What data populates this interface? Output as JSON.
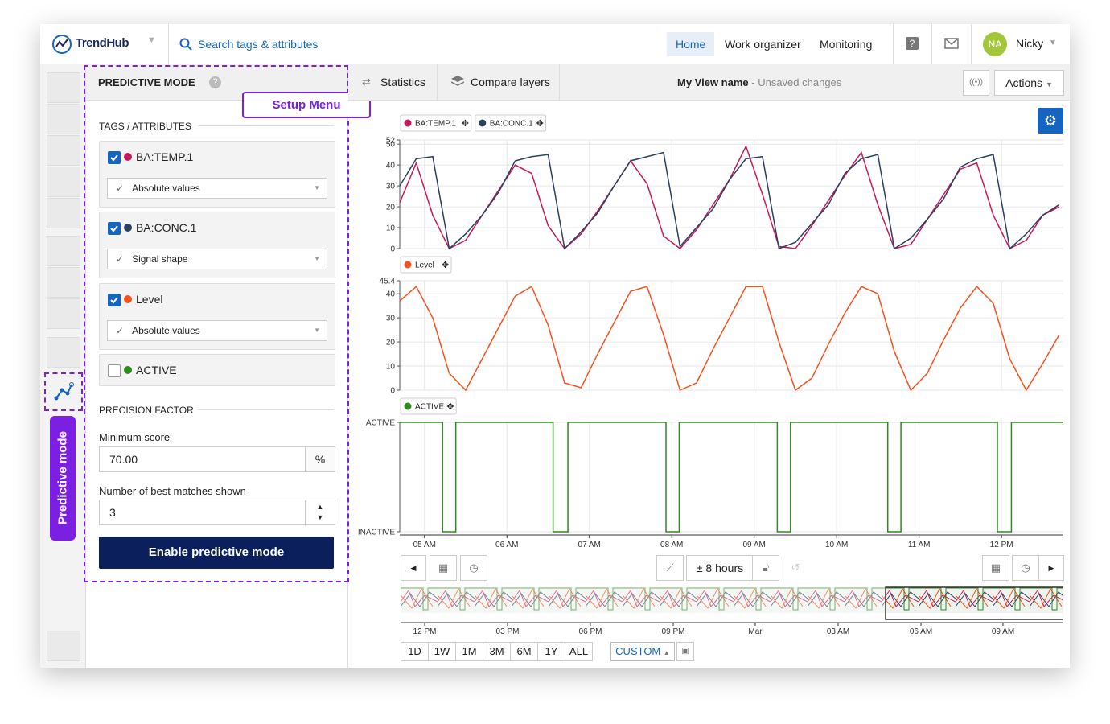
{
  "header": {
    "logo": "TrendHub",
    "search": "Search tags & attributes",
    "nav": [
      "Home",
      "Work organizer",
      "Monitoring"
    ],
    "avatar": "NA",
    "user": "Nicky"
  },
  "rail": {
    "mode_tab": "Predictive mode"
  },
  "setup": {
    "title": "PREDICTIVE MODE",
    "callout": "Setup Menu",
    "tags_heading": "TAGS / ATTRIBUTES",
    "tags": [
      {
        "name": "BA:TEMP.1",
        "color": "#c8185c",
        "checked": true,
        "mode": "Absolute values"
      },
      {
        "name": "BA:CONC.1",
        "color": "#2b3f5e",
        "checked": true,
        "mode": "Signal shape"
      },
      {
        "name": "Level",
        "color": "#f4511e",
        "checked": true,
        "mode": "Absolute values"
      },
      {
        "name": "ACTIVE",
        "color": "#2e8b1e",
        "checked": false
      }
    ],
    "precision_heading": "PRECISION FACTOR",
    "min_score_label": "Minimum score",
    "min_score": "70.00",
    "min_score_unit": "%",
    "matches_label": "Number of best matches shown",
    "matches": 3,
    "button": "Enable predictive mode"
  },
  "toolbar": {
    "statistics": "Statistics",
    "compare": "Compare layers",
    "view_name": "My View name",
    "view_status": "- Unsaved changes",
    "actions": "Actions"
  },
  "charts": [
    {
      "type": "line",
      "xlim": [
        4.7,
        12.75
      ],
      "ylim": [
        0,
        52
      ],
      "yticks": [
        0,
        10,
        20,
        30,
        40,
        50,
        52
      ],
      "grid": true,
      "x": [
        4.7,
        4.9,
        5.1,
        5.3,
        5.5,
        5.7,
        5.9,
        6.1,
        6.3,
        6.5,
        6.7,
        6.9,
        7.1,
        7.3,
        7.5,
        7.7,
        7.9,
        8.1,
        8.3,
        8.5,
        8.7,
        8.9,
        9.1,
        9.3,
        9.5,
        9.7,
        9.9,
        10.1,
        10.3,
        10.5,
        10.7,
        10.9,
        11.1,
        11.3,
        11.5,
        11.7,
        11.9,
        12.1,
        12.3,
        12.5,
        12.7
      ],
      "series": [
        {
          "name": "BA:TEMP.1",
          "color": "#c8185c",
          "values": [
            22,
            41,
            16,
            0,
            4,
            16,
            28,
            40,
            36,
            11,
            0,
            7,
            18,
            30,
            42,
            31,
            6,
            0,
            9,
            21,
            33,
            49,
            26,
            1,
            0,
            11,
            23,
            35,
            46,
            21,
            0,
            2,
            14,
            26,
            38,
            41,
            16,
            0,
            4,
            16,
            20
          ]
        },
        {
          "name": "BA:CONC.1",
          "color": "#2b3f5e",
          "values": [
            30,
            43,
            44,
            0,
            7,
            16,
            27,
            42,
            44,
            45,
            0,
            8,
            17,
            30,
            42,
            44,
            46,
            1,
            10,
            19,
            33,
            43,
            44,
            0,
            3,
            12,
            21,
            36,
            43,
            45,
            0,
            5,
            14,
            24,
            39,
            43,
            45,
            0,
            7,
            16,
            21
          ]
        }
      ]
    },
    {
      "type": "line",
      "xlim": [
        4.7,
        12.75
      ],
      "ylim": [
        0,
        45.4
      ],
      "yticks": [
        0,
        10,
        20,
        30,
        40,
        45.4
      ],
      "grid": true,
      "x": [
        4.7,
        4.9,
        5.1,
        5.3,
        5.5,
        5.7,
        5.9,
        6.1,
        6.3,
        6.5,
        6.7,
        6.9,
        7.1,
        7.3,
        7.5,
        7.7,
        7.9,
        8.1,
        8.3,
        8.5,
        8.7,
        8.9,
        9.1,
        9.3,
        9.5,
        9.7,
        9.9,
        10.1,
        10.3,
        10.5,
        10.7,
        10.9,
        11.1,
        11.3,
        11.5,
        11.7,
        11.9,
        12.1,
        12.3,
        12.5,
        12.7
      ],
      "series": [
        {
          "name": "Level",
          "color": "#f4511e",
          "values": [
            37,
            43,
            30,
            7,
            0,
            13,
            26,
            39,
            43,
            27,
            3,
            1,
            15,
            28,
            41,
            43,
            23,
            0,
            3,
            17,
            30,
            43,
            43,
            20,
            0,
            5,
            19,
            32,
            43,
            40,
            16,
            0,
            7,
            21,
            34,
            43,
            36,
            13,
            0,
            11,
            23
          ]
        }
      ]
    },
    {
      "type": "step",
      "xlim": [
        4.7,
        12.75
      ],
      "ylim": [
        0,
        1
      ],
      "yticks": [
        {
          "value": 0,
          "label": "INACTIVE"
        },
        {
          "value": 1,
          "label": "ACTIVE"
        }
      ],
      "grid": true,
      "xticks": [
        {
          "value": 5,
          "label": "05 AM"
        },
        {
          "value": 6,
          "label": "06 AM"
        },
        {
          "value": 7,
          "label": "07 AM"
        },
        {
          "value": 8,
          "label": "08 AM"
        },
        {
          "value": 9,
          "label": "09 AM"
        },
        {
          "value": 10,
          "label": "10 AM"
        },
        {
          "value": 11,
          "label": "11 AM"
        },
        {
          "value": 12,
          "label": "12 PM"
        }
      ],
      "x": [
        4.7,
        5.22,
        5.38,
        6.56,
        6.74,
        7.93,
        8.09,
        9.28,
        9.44,
        10.62,
        10.78,
        11.95,
        12.12,
        12.75
      ],
      "series": [
        {
          "name": "ACTIVE",
          "color": "#2e8b1e",
          "values": [
            1,
            0,
            1,
            0,
            1,
            0,
            1,
            0,
            1,
            0,
            1,
            0,
            1,
            1
          ]
        }
      ]
    }
  ],
  "time_controls": {
    "window": "± 8 hours",
    "ranges": [
      "1D",
      "1W",
      "1M",
      "3M",
      "6M",
      "1Y",
      "ALL"
    ],
    "custom": "CUSTOM",
    "overview_ticks": [
      "12 PM",
      "03 PM",
      "06 PM",
      "09 PM",
      "Mar",
      "03 AM",
      "06 AM",
      "09 AM"
    ]
  }
}
